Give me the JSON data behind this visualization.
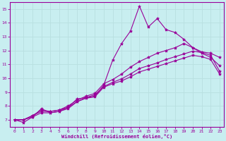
{
  "xlabel": "Windchill (Refroidissement éolien,°C)",
  "xlim": [
    -0.5,
    23.5
  ],
  "ylim": [
    6.5,
    15.5
  ],
  "yticks": [
    7,
    8,
    9,
    10,
    11,
    12,
    13,
    14,
    15
  ],
  "xticks": [
    0,
    1,
    2,
    3,
    4,
    5,
    6,
    7,
    8,
    9,
    10,
    11,
    12,
    13,
    14,
    15,
    16,
    17,
    18,
    19,
    20,
    21,
    22,
    23
  ],
  "bg_color": "#c8eef0",
  "line_color": "#990099",
  "grid_color": "#b8dfe0",
  "lines": [
    {
      "x": [
        0,
        1,
        2,
        3,
        4,
        5,
        6,
        7,
        8,
        9,
        10,
        11,
        12,
        13,
        14,
        15,
        16,
        17,
        18,
        19,
        20,
        21,
        22,
        23
      ],
      "y": [
        7.0,
        6.8,
        7.2,
        7.8,
        7.5,
        7.6,
        7.9,
        8.5,
        8.6,
        8.7,
        9.5,
        11.3,
        12.5,
        13.4,
        15.2,
        13.7,
        14.3,
        13.5,
        13.3,
        12.8,
        12.2,
        11.8,
        11.5,
        10.9
      ]
    },
    {
      "x": [
        0,
        1,
        2,
        3,
        4,
        5,
        6,
        7,
        8,
        9,
        10,
        11,
        12,
        13,
        14,
        15,
        16,
        17,
        18,
        19,
        20,
        21,
        22,
        23
      ],
      "y": [
        7.0,
        7.0,
        7.3,
        7.7,
        7.6,
        7.7,
        8.0,
        8.4,
        8.7,
        8.9,
        9.6,
        9.9,
        10.3,
        10.8,
        11.2,
        11.5,
        11.8,
        12.0,
        12.2,
        12.5,
        12.2,
        11.9,
        11.8,
        11.5
      ]
    },
    {
      "x": [
        0,
        1,
        2,
        3,
        4,
        5,
        6,
        7,
        8,
        9,
        10,
        11,
        12,
        13,
        14,
        15,
        16,
        17,
        18,
        19,
        20,
        21,
        22,
        23
      ],
      "y": [
        7.0,
        7.0,
        7.3,
        7.6,
        7.6,
        7.7,
        7.9,
        8.3,
        8.6,
        8.8,
        9.4,
        9.7,
        9.95,
        10.3,
        10.7,
        10.9,
        11.1,
        11.35,
        11.55,
        11.75,
        11.95,
        11.85,
        11.65,
        10.5
      ]
    },
    {
      "x": [
        0,
        1,
        2,
        3,
        4,
        5,
        6,
        7,
        8,
        9,
        10,
        11,
        12,
        13,
        14,
        15,
        16,
        17,
        18,
        19,
        20,
        21,
        22,
        23
      ],
      "y": [
        7.0,
        7.0,
        7.2,
        7.5,
        7.5,
        7.6,
        7.8,
        8.3,
        8.55,
        8.65,
        9.35,
        9.6,
        9.8,
        10.1,
        10.45,
        10.65,
        10.85,
        11.05,
        11.25,
        11.45,
        11.65,
        11.55,
        11.35,
        10.3
      ]
    }
  ]
}
